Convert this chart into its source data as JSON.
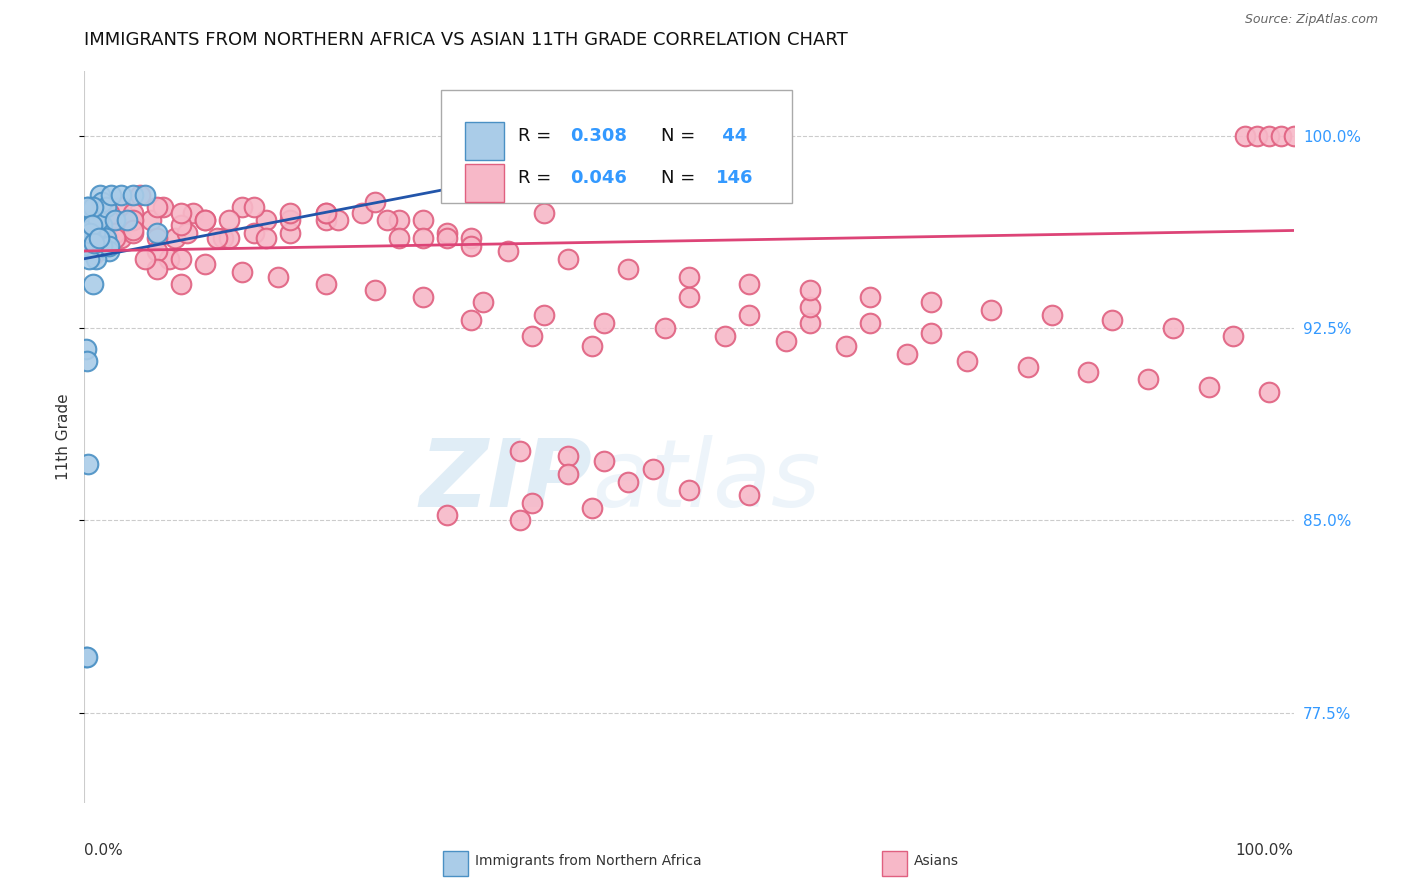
{
  "title": "IMMIGRANTS FROM NORTHERN AFRICA VS ASIAN 11TH GRADE CORRELATION CHART",
  "source": "Source: ZipAtlas.com",
  "ylabel": "11th Grade",
  "xlim": [
    0.0,
    1.0
  ],
  "ylim": [
    0.74,
    1.025
  ],
  "yticks": [
    0.775,
    0.85,
    0.925,
    1.0
  ],
  "ytick_labels": [
    "77.5%",
    "85.0%",
    "92.5%",
    "100.0%"
  ],
  "background_color": "#ffffff",
  "watermark_zip": "ZIP",
  "watermark_atlas": "atlas",
  "blue_color": "#aacce8",
  "pink_color": "#f7b8c8",
  "blue_edge_color": "#4a90c4",
  "pink_edge_color": "#e06080",
  "blue_line_color": "#2255aa",
  "pink_line_color": "#dd4477",
  "label_color": "#3399ff",
  "blue_scatter_x": [
    0.001,
    0.002,
    0.003,
    0.004,
    0.005,
    0.006,
    0.007,
    0.008,
    0.01,
    0.012,
    0.015,
    0.018,
    0.02,
    0.003,
    0.005,
    0.007,
    0.009,
    0.011,
    0.013,
    0.015,
    0.018,
    0.022,
    0.025,
    0.03,
    0.035,
    0.04,
    0.05,
    0.06,
    0.001,
    0.002,
    0.003,
    0.001,
    0.002,
    0.003,
    0.005,
    0.007,
    0.01,
    0.015,
    0.02,
    0.002,
    0.004,
    0.006,
    0.008,
    0.012
  ],
  "blue_scatter_y": [
    0.96,
    0.958,
    0.964,
    0.956,
    0.955,
    0.962,
    0.967,
    0.972,
    0.957,
    0.962,
    0.965,
    0.96,
    0.955,
    0.972,
    0.963,
    0.942,
    0.962,
    0.967,
    0.977,
    0.974,
    0.972,
    0.977,
    0.967,
    0.977,
    0.967,
    0.977,
    0.977,
    0.962,
    0.917,
    0.912,
    0.957,
    0.797,
    0.797,
    0.872,
    0.962,
    0.972,
    0.952,
    0.957,
    0.957,
    0.972,
    0.952,
    0.965,
    0.958,
    0.96
  ],
  "pink_scatter_x": [
    0.002,
    0.004,
    0.006,
    0.008,
    0.01,
    0.013,
    0.016,
    0.02,
    0.025,
    0.03,
    0.038,
    0.046,
    0.055,
    0.065,
    0.075,
    0.09,
    0.1,
    0.115,
    0.13,
    0.15,
    0.17,
    0.2,
    0.23,
    0.26,
    0.3,
    0.02,
    0.03,
    0.04,
    0.06,
    0.07,
    0.085,
    0.1,
    0.12,
    0.14,
    0.17,
    0.2,
    0.24,
    0.28,
    0.32,
    0.38,
    0.02,
    0.04,
    0.06,
    0.08,
    0.11,
    0.14,
    0.17,
    0.21,
    0.26,
    0.01,
    0.025,
    0.04,
    0.06,
    0.08,
    0.1,
    0.13,
    0.16,
    0.2,
    0.24,
    0.28,
    0.33,
    0.38,
    0.43,
    0.48,
    0.53,
    0.58,
    0.63,
    0.68,
    0.73,
    0.78,
    0.83,
    0.88,
    0.93,
    0.98,
    0.96,
    0.97,
    0.98,
    0.99,
    1.0,
    0.36,
    0.4,
    0.43,
    0.47,
    0.4,
    0.45,
    0.5,
    0.55,
    0.37,
    0.42,
    0.3,
    0.36,
    0.28,
    0.32,
    0.5,
    0.55,
    0.6,
    0.04,
    0.06,
    0.08,
    0.6,
    0.65,
    0.7,
    0.32,
    0.37,
    0.42,
    0.01,
    0.025,
    0.05,
    0.08,
    0.12,
    0.15,
    0.2,
    0.25,
    0.3,
    0.35,
    0.4,
    0.45,
    0.5,
    0.55,
    0.6,
    0.65,
    0.7,
    0.75,
    0.8,
    0.85,
    0.9,
    0.95
  ],
  "pink_scatter_y": [
    0.957,
    0.962,
    0.96,
    0.954,
    0.962,
    0.957,
    0.964,
    0.96,
    0.967,
    0.972,
    0.967,
    0.977,
    0.967,
    0.972,
    0.96,
    0.97,
    0.967,
    0.96,
    0.972,
    0.967,
    0.962,
    0.967,
    0.97,
    0.967,
    0.962,
    0.97,
    0.96,
    0.962,
    0.96,
    0.952,
    0.962,
    0.967,
    0.96,
    0.972,
    0.967,
    0.97,
    0.974,
    0.967,
    0.96,
    0.97,
    0.967,
    0.97,
    0.972,
    0.965,
    0.96,
    0.962,
    0.97,
    0.967,
    0.96,
    0.967,
    0.962,
    0.967,
    0.955,
    0.952,
    0.95,
    0.947,
    0.945,
    0.942,
    0.94,
    0.937,
    0.935,
    0.93,
    0.927,
    0.925,
    0.922,
    0.92,
    0.918,
    0.915,
    0.912,
    0.91,
    0.908,
    0.905,
    0.902,
    0.9,
    1.0,
    1.0,
    1.0,
    1.0,
    1.0,
    0.877,
    0.875,
    0.873,
    0.87,
    0.868,
    0.865,
    0.862,
    0.86,
    0.857,
    0.855,
    0.852,
    0.85,
    0.96,
    0.957,
    0.937,
    0.93,
    0.927,
    0.963,
    0.948,
    0.942,
    0.933,
    0.927,
    0.923,
    0.928,
    0.922,
    0.918,
    0.967,
    0.96,
    0.952,
    0.97,
    0.967,
    0.96,
    0.97,
    0.967,
    0.96,
    0.955,
    0.952,
    0.948,
    0.945,
    0.942,
    0.94,
    0.937,
    0.935,
    0.932,
    0.93,
    0.928,
    0.925,
    0.922
  ],
  "blue_trend_x": [
    0.0,
    0.42
  ],
  "blue_trend_y": [
    0.952,
    0.99
  ],
  "pink_trend_x": [
    0.0,
    1.0
  ],
  "pink_trend_y": [
    0.955,
    0.963
  ],
  "grid_color": "#cccccc",
  "grid_style": "--",
  "title_fontsize": 13,
  "ylabel_fontsize": 11,
  "tick_fontsize": 11,
  "legend_fontsize": 13
}
